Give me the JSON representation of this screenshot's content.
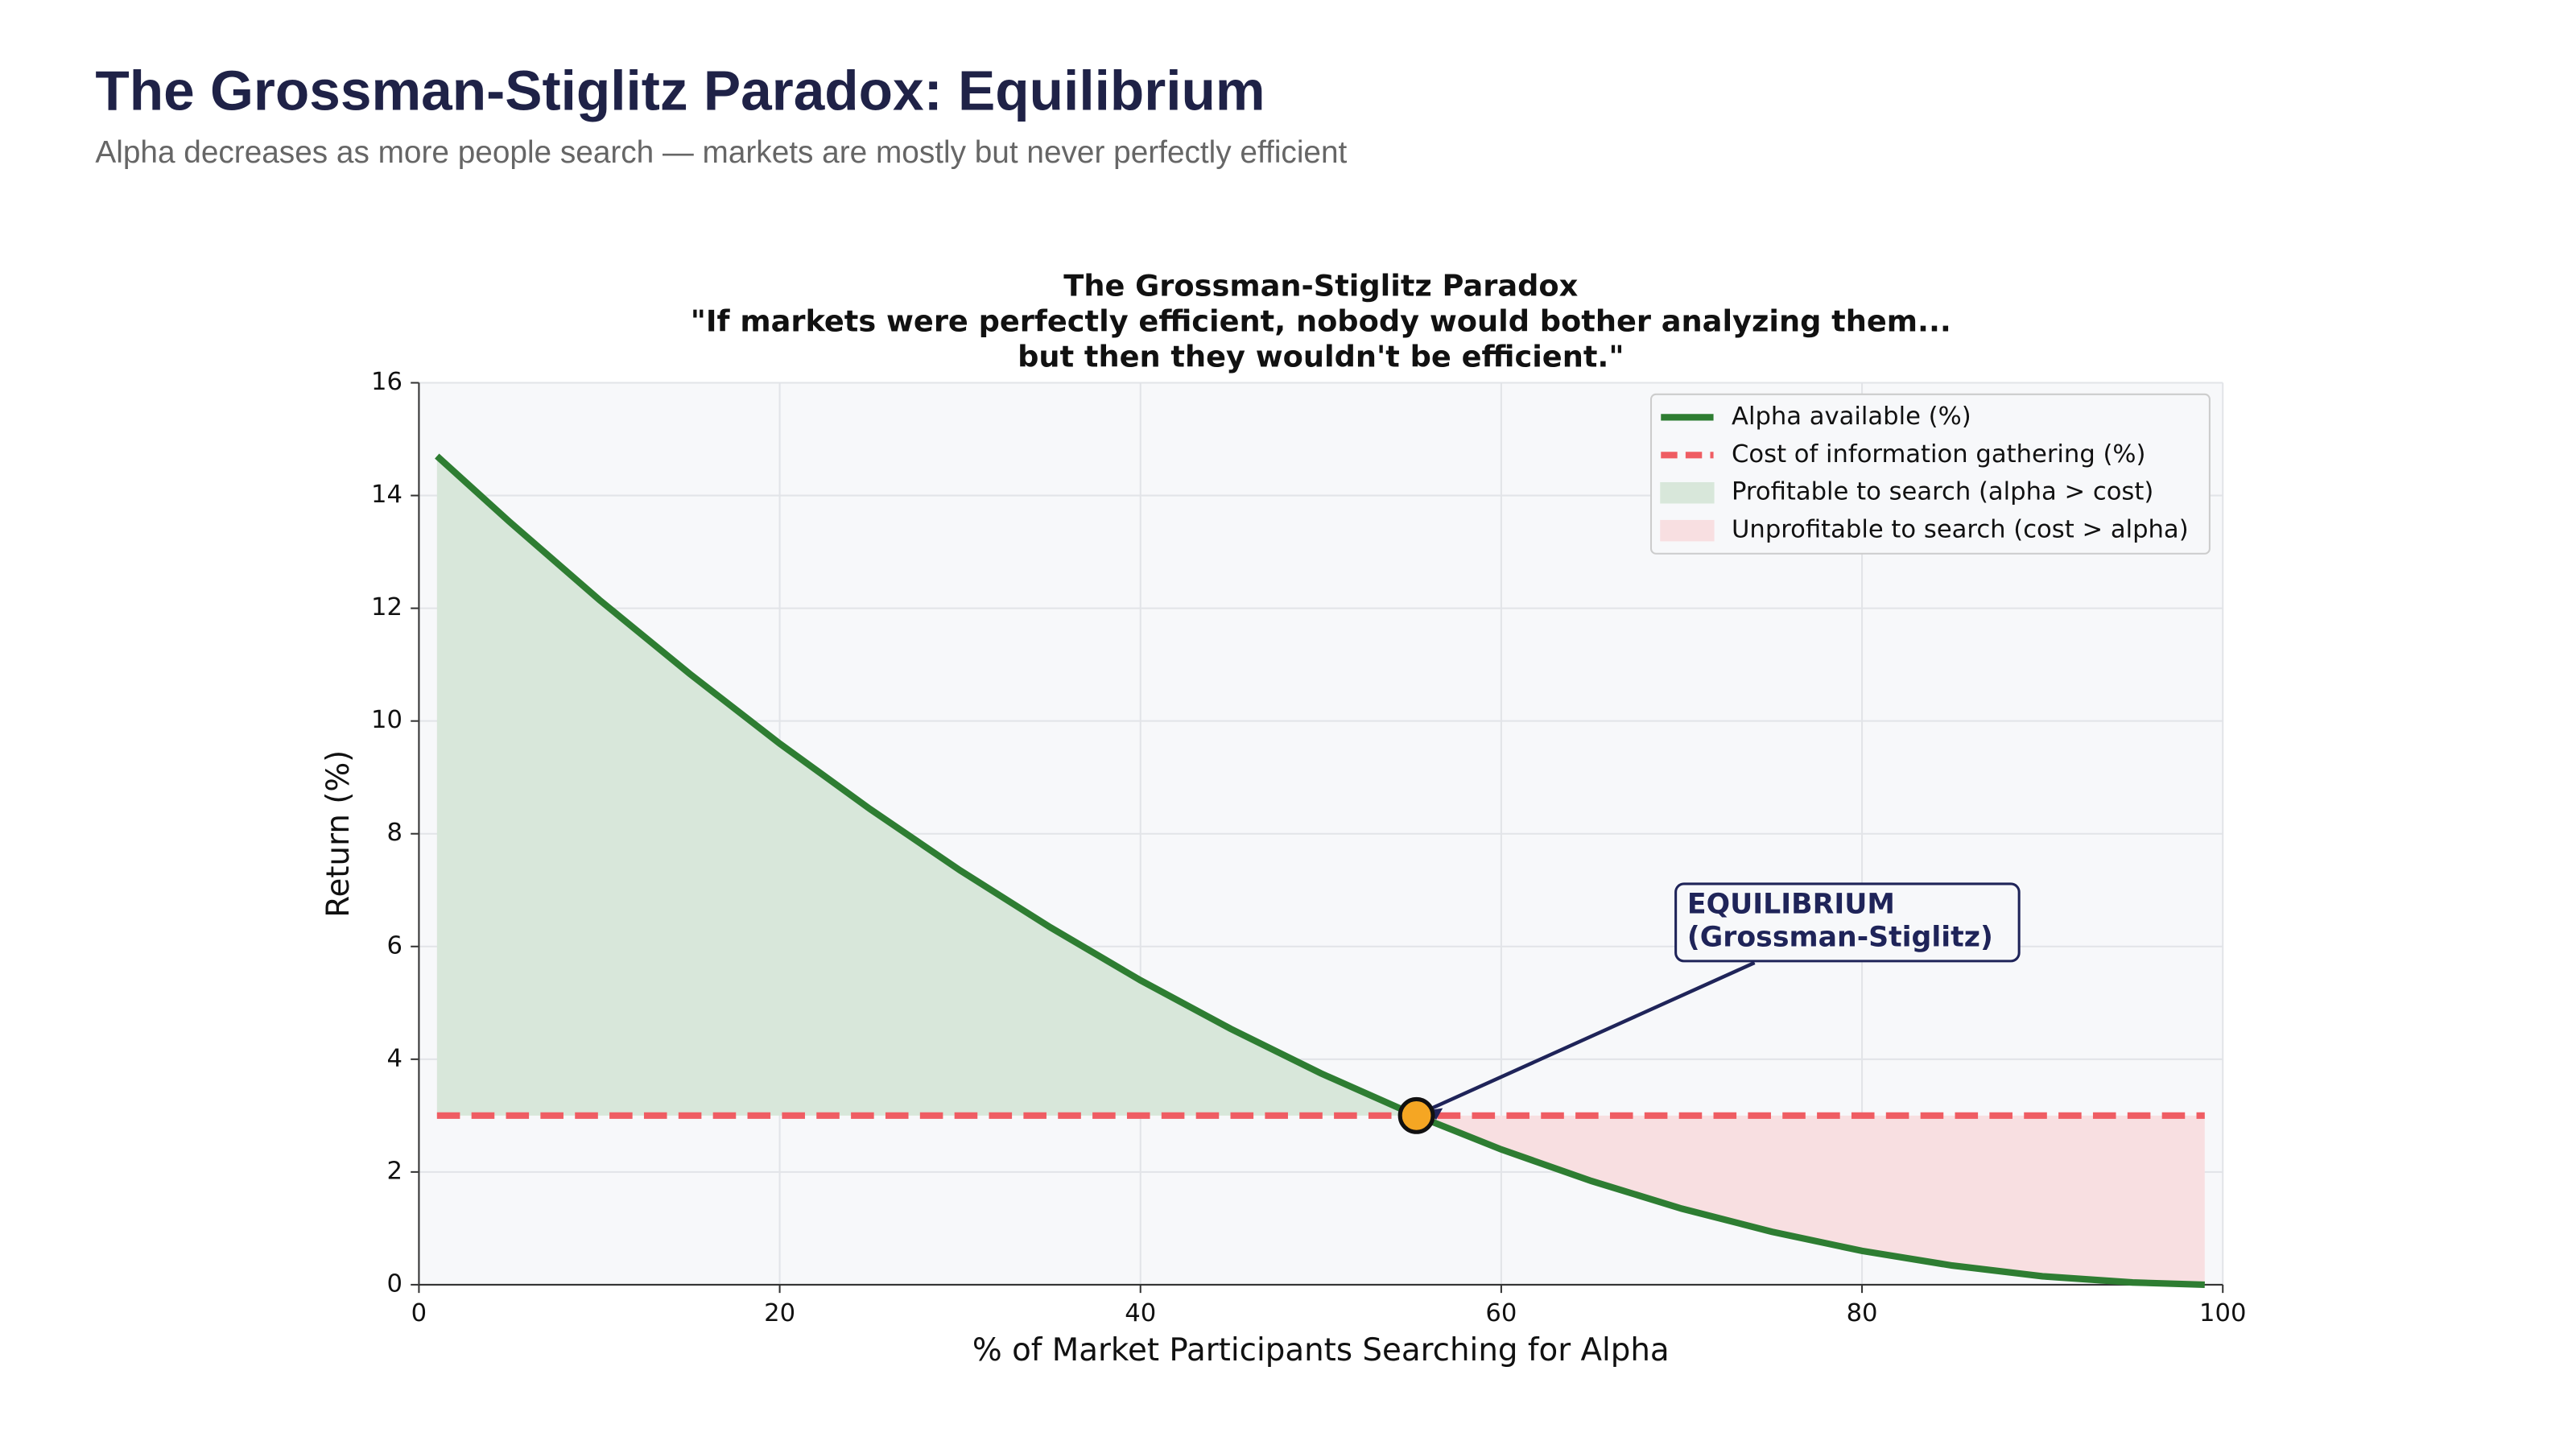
{
  "header": {
    "title": "The Grossman-Stiglitz Paradox: Equilibrium",
    "subtitle": "Alpha decreases as more people search — markets are mostly but never perfectly efficient"
  },
  "chart_data": {
    "type": "line",
    "title": [
      "The Grossman-Stiglitz Paradox",
      "\"If markets were perfectly efficient, nobody would bother analyzing them...",
      "but then they wouldn't be efficient.\""
    ],
    "x_label": "% of Market Participants Searching for Alpha",
    "y_label": "Return (%)",
    "x": [
      1,
      5,
      10,
      15,
      20,
      25,
      30,
      35,
      40,
      45,
      50,
      55,
      60,
      65,
      70,
      75,
      80,
      85,
      90,
      95,
      99
    ],
    "series": [
      {
        "name": "Alpha available (%)",
        "color": "#2e7d32",
        "values": [
          14.7,
          13.54,
          12.15,
          10.84,
          9.6,
          8.44,
          7.35,
          6.34,
          5.4,
          4.54,
          3.75,
          3.04,
          2.4,
          1.84,
          1.35,
          0.94,
          0.6,
          0.34,
          0.15,
          0.04,
          0.0
        ]
      },
      {
        "name": "Cost of information gathering (%)",
        "color": "#ef5d63",
        "dashed": true,
        "values": [
          3,
          3,
          3,
          3,
          3,
          3,
          3,
          3,
          3,
          3,
          3,
          3,
          3,
          3,
          3,
          3,
          3,
          3,
          3,
          3,
          3
        ]
      }
    ],
    "fills": [
      {
        "name": "Profitable to search (alpha > cost)",
        "color": "#d8e7da"
      },
      {
        "name": "Unprofitable to search (cost > alpha)",
        "color": "#f8dfe1"
      }
    ],
    "equilibrium": {
      "x": 55.3,
      "y": 3,
      "color": "#f5a623",
      "label": [
        "EQUILIBRIUM",
        "(Grossman-Stiglitz)"
      ]
    },
    "xlim": [
      0,
      100
    ],
    "ylim": [
      0,
      16
    ],
    "xticks": [
      0,
      20,
      40,
      60,
      80,
      100
    ],
    "yticks": [
      0,
      2,
      4,
      6,
      8,
      10,
      12,
      14,
      16
    ],
    "grid": true,
    "legend": "upper right"
  }
}
